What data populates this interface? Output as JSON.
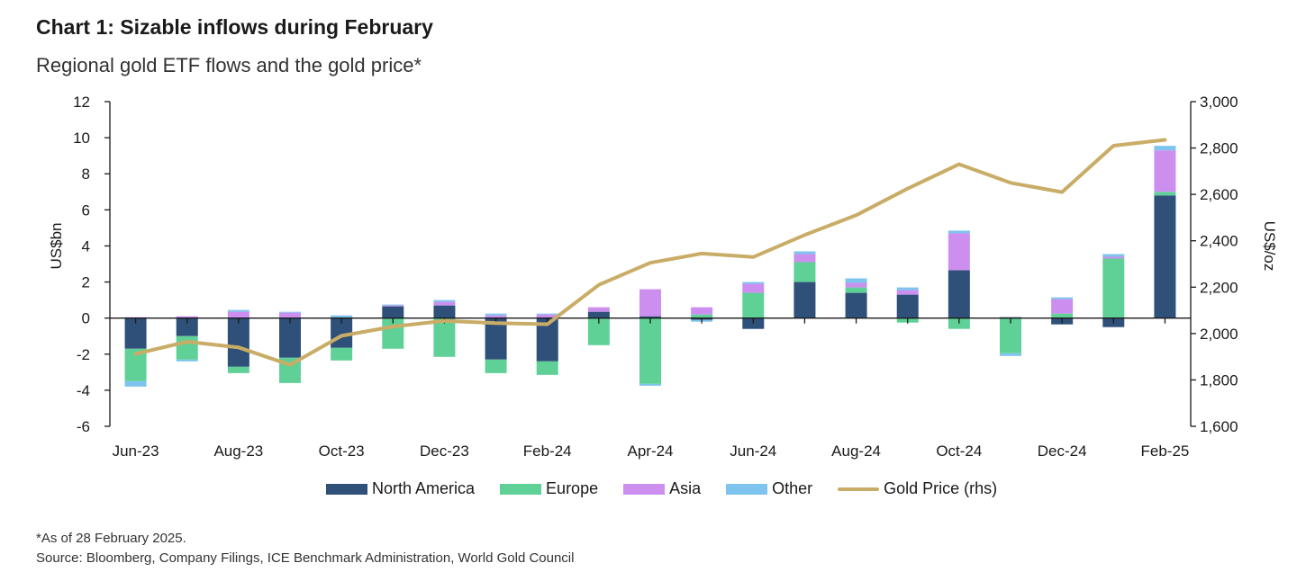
{
  "title": "Chart 1: Sizable inflows during February",
  "subtitle": "Regional gold ETF flows and the gold price*",
  "footnotes": {
    "asof": "*As of 28 February 2025.",
    "source": "Source: Bloomberg, Company Filings, ICE Benchmark Administration, World Gold Council"
  },
  "colors": {
    "north_america": "#2f5079",
    "europe": "#5fd197",
    "asia": "#cc8ff0",
    "other": "#7fc4ee",
    "gold": "#c9ac66",
    "axis": "#1a1a1a"
  },
  "chart_data": {
    "type": "bar",
    "stacked": true,
    "categories": [
      "Jun-23",
      "Jul-23",
      "Aug-23",
      "Sep-23",
      "Oct-23",
      "Nov-23",
      "Dec-23",
      "Jan-24",
      "Feb-24",
      "Mar-24",
      "Apr-24",
      "May-24",
      "Jun-24",
      "Jul-24",
      "Aug-24",
      "Sep-24",
      "Oct-24",
      "Nov-24",
      "Dec-24",
      "Jan-25",
      "Feb-25"
    ],
    "xtick_labels": [
      "Jun-23",
      "",
      "Aug-23",
      "",
      "Oct-23",
      "",
      "Dec-23",
      "",
      "Feb-24",
      "",
      "Apr-24",
      "",
      "Jun-24",
      "",
      "Aug-24",
      "",
      "Oct-24",
      "",
      "Dec-24",
      "",
      "Feb-25"
    ],
    "series": [
      {
        "name": "North America",
        "key": "north_america",
        "values": [
          -1.7,
          -1.0,
          -2.7,
          -2.2,
          -1.65,
          0.65,
          0.7,
          -2.3,
          -2.4,
          0.35,
          0.1,
          -0.1,
          -0.6,
          2.0,
          1.4,
          1.3,
          2.65,
          0.05,
          -0.35,
          -0.5,
          6.8
        ]
      },
      {
        "name": "Europe",
        "key": "europe",
        "values": [
          -1.8,
          -1.3,
          -0.35,
          -1.4,
          -0.7,
          -1.7,
          -2.15,
          -0.75,
          -0.75,
          -1.5,
          -3.65,
          0.2,
          1.4,
          1.1,
          0.3,
          -0.25,
          -0.6,
          -1.95,
          0.25,
          3.3,
          0.2
        ]
      },
      {
        "name": "Asia",
        "key": "asia",
        "values": [
          0.05,
          0.1,
          0.35,
          0.3,
          0.0,
          0.05,
          0.2,
          0.15,
          0.2,
          0.25,
          1.5,
          0.4,
          0.5,
          0.45,
          0.25,
          0.25,
          2.05,
          0.0,
          0.8,
          0.1,
          2.3
        ]
      },
      {
        "name": "Other",
        "key": "other",
        "values": [
          -0.3,
          -0.1,
          0.1,
          0.05,
          0.15,
          0.05,
          0.1,
          0.1,
          0.05,
          0.0,
          -0.1,
          -0.1,
          0.1,
          0.15,
          0.25,
          0.15,
          0.15,
          -0.15,
          0.1,
          0.15,
          0.25
        ]
      }
    ],
    "line_series": {
      "name": "Gold Price (rhs)",
      "axis": "right",
      "values": [
        1912,
        1965,
        1940,
        1865,
        1990,
        2030,
        2055,
        2045,
        2040,
        2210,
        2305,
        2345,
        2330,
        2425,
        2510,
        2625,
        2730,
        2650,
        2610,
        2810,
        2835
      ]
    },
    "ylabel": "US$bn",
    "ylabel_right": "US$/oz",
    "ylim": [
      -6,
      12
    ],
    "ylim_right": [
      1600,
      3000
    ],
    "yticks": [
      -6,
      -4,
      -2,
      0,
      2,
      4,
      6,
      8,
      10,
      12
    ],
    "yticks_right": [
      1600,
      1800,
      2000,
      2200,
      2400,
      2600,
      2800,
      3000
    ],
    "ytick_labels_right": [
      "1,600",
      "1,800",
      "2,000",
      "2,200",
      "2,400",
      "2,600",
      "2,800",
      "3,000"
    ],
    "legend": [
      "North America",
      "Europe",
      "Asia",
      "Other",
      "Gold Price (rhs)"
    ],
    "legend_position": "bottom",
    "grid": false
  }
}
